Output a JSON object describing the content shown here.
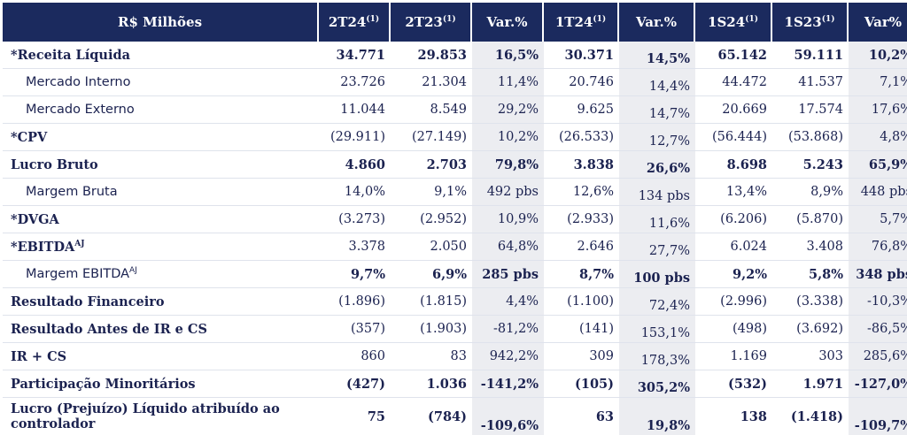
{
  "headers": [
    {
      "label": "R$ Milhões",
      "sup": ""
    },
    {
      "label": "2T24",
      "sup": "(1)"
    },
    {
      "label": "2T23",
      "sup": "(1)"
    },
    {
      "label": "Var.%",
      "sup": ""
    },
    {
      "label": "1T24",
      "sup": "(1)"
    },
    {
      "label": "Var.%",
      "sup": ""
    },
    {
      "label": "1S24",
      "sup": "(1)"
    },
    {
      "label": "1S23",
      "sup": "(1)"
    },
    {
      "label": "Var%",
      "sup": ""
    }
  ],
  "rows": [
    {
      "label": "*Receita Líquida",
      "sup": "",
      "bold": true,
      "sub": false,
      "cells": [
        "34.771",
        "29.853",
        "16,5%",
        "30.371",
        "14,5%",
        "65.142",
        "59.111",
        "10,2%"
      ]
    },
    {
      "label": "Mercado Interno",
      "sup": "",
      "bold": false,
      "sub": true,
      "cells": [
        "23.726",
        "21.304",
        "11,4%",
        "20.746",
        "14,4%",
        "44.472",
        "41.537",
        "7,1%"
      ]
    },
    {
      "label": "Mercado Externo",
      "sup": "",
      "bold": false,
      "sub": true,
      "cells": [
        "11.044",
        "8.549",
        "29,2%",
        "9.625",
        "14,7%",
        "20.669",
        "17.574",
        "17,6%"
      ]
    },
    {
      "label": "*CPV",
      "sup": "",
      "bold": false,
      "sub": false,
      "labelBold": true,
      "cells": [
        "(29.911)",
        "(27.149)",
        "10,2%",
        "(26.533)",
        "12,7%",
        "(56.444)",
        "(53.868)",
        "4,8%"
      ]
    },
    {
      "label": "Lucro Bruto",
      "sup": "",
      "bold": true,
      "sub": false,
      "cells": [
        "4.860",
        "2.703",
        "79,8%",
        "3.838",
        "26,6%",
        "8.698",
        "5.243",
        "65,9%"
      ]
    },
    {
      "label": "Margem Bruta",
      "sup": "",
      "bold": false,
      "sub": true,
      "cells": [
        "14,0%",
        "9,1%",
        "492 pbs",
        "12,6%",
        "134 pbs",
        "13,4%",
        "8,9%",
        "448 pbs"
      ]
    },
    {
      "label": "*DVGA",
      "sup": "",
      "bold": false,
      "sub": false,
      "labelBold": true,
      "cells": [
        "(3.273)",
        "(2.952)",
        "10,9%",
        "(2.933)",
        "11,6%",
        "(6.206)",
        "(5.870)",
        "5,7%"
      ]
    },
    {
      "label": "*EBITDA",
      "sup": "AJ",
      "bold": false,
      "sub": false,
      "labelBold": true,
      "cells": [
        "3.378",
        "2.050",
        "64,8%",
        "2.646",
        "27,7%",
        "6.024",
        "3.408",
        "76,8%"
      ]
    },
    {
      "label": "Margem EBITDA",
      "sup": "AJ",
      "bold": true,
      "sub": true,
      "labelNormal": true,
      "cells": [
        "9,7%",
        "6,9%",
        "285 pbs",
        "8,7%",
        "100 pbs",
        "9,2%",
        "5,8%",
        "348 pbs"
      ]
    },
    {
      "label": "Resultado Financeiro",
      "sup": "",
      "bold": false,
      "sub": false,
      "labelBold": true,
      "cells": [
        "(1.896)",
        "(1.815)",
        "4,4%",
        "(1.100)",
        "72,4%",
        "(2.996)",
        "(3.338)",
        "-10,3%"
      ]
    },
    {
      "label": "Resultado Antes de IR e CS",
      "sup": "",
      "bold": false,
      "sub": false,
      "labelBold": true,
      "cells": [
        "(357)",
        "(1.903)",
        "-81,2%",
        "(141)",
        "153,1%",
        "(498)",
        "(3.692)",
        "-86,5%"
      ]
    },
    {
      "label": "IR + CS",
      "sup": "",
      "bold": false,
      "sub": false,
      "labelBold": true,
      "cells": [
        "860",
        "83",
        "942,2%",
        "309",
        "178,3%",
        "1.169",
        "303",
        "285,6%"
      ]
    },
    {
      "label": "Participação Minoritários",
      "sup": "",
      "bold": true,
      "sub": false,
      "cells": [
        "(427)",
        "1.036",
        "-141,2%",
        "(105)",
        "305,2%",
        "(532)",
        "1.971",
        "-127,0%"
      ]
    },
    {
      "label": "Lucro (Prejuízo) Líquido atribuído ao controlador",
      "sup": "",
      "bold": true,
      "sub": false,
      "last": true,
      "cells": [
        "75",
        "(784)",
        "-109,6%",
        "63",
        "19,8%",
        "138",
        "(1.418)",
        "-109,7%"
      ]
    }
  ],
  "colors": {
    "header_bg": "#1b2a5e",
    "header_text": "#ffffff",
    "var_bg": "#ecedf1",
    "text": "#1b2250"
  }
}
